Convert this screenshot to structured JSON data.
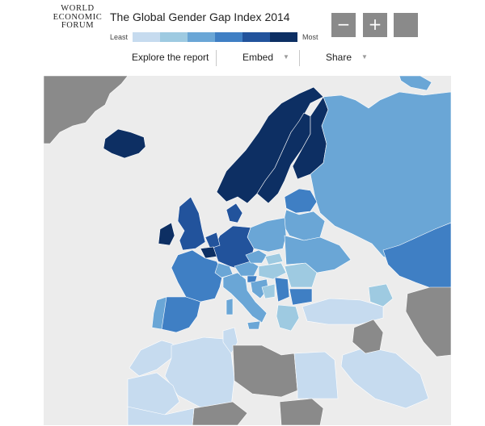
{
  "logo": {
    "line1": "WORLD",
    "line2": "ECONOMIC",
    "line3": "FORUM"
  },
  "title": "The Global Gender Gap Index 2014",
  "legend": {
    "least": "Least",
    "most": "Most",
    "scale_colors": [
      "#c6dbef",
      "#9ecae1",
      "#6aa6d6",
      "#3f7fc4",
      "#22539c",
      "#0d2f63"
    ]
  },
  "zoom": {
    "out_label": "−",
    "in_label": "+"
  },
  "toolbar": {
    "explore": "Explore the report",
    "embed": "Embed",
    "share": "Share",
    "caret": "▼"
  },
  "map": {
    "sea_color": "#ececec",
    "no_data_color": "#8a8a8a",
    "region_levels": {
      "iceland": 6,
      "norway": 6,
      "sweden": 6,
      "finland": 6,
      "denmark": 5,
      "ireland": 6,
      "united-kingdom": 5,
      "netherlands": 5,
      "belgium": 6,
      "germany": 5,
      "france": 4,
      "spain": 4,
      "portugal": 3,
      "italy": 3,
      "switzerland": 3,
      "austria": 3,
      "poland": 3,
      "czech-republic": 3,
      "slovakia": 2,
      "hungary": 2,
      "slovenia": 4,
      "croatia": 3,
      "serbia": 4,
      "bosnia": 2,
      "bulgaria": 4,
      "romania": 2,
      "greece": 2,
      "baltics": 4,
      "belarus": 3,
      "ukraine": 3,
      "russia": 3,
      "kazakhstan": 4,
      "turkey": 1,
      "caucasus": 2,
      "morocco": 1,
      "algeria": 1,
      "tunisia": 1,
      "egypt": 1,
      "sahara-region": 1,
      "arabia": 1,
      "mauritania": 1
    }
  }
}
